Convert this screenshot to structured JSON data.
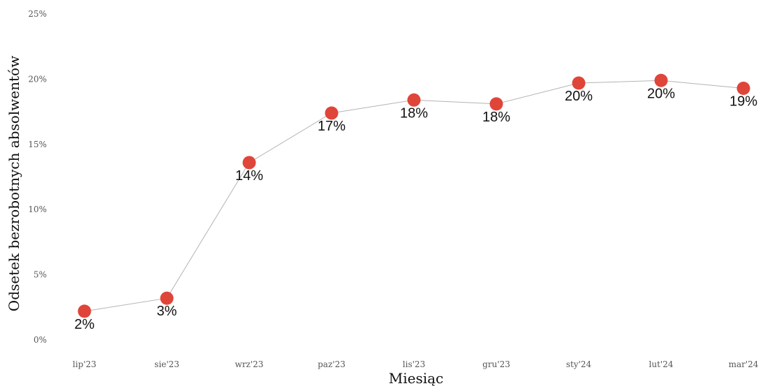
{
  "chart_data": {
    "type": "line",
    "xlabel": "Miesiąc",
    "ylabel": "Odsetek bezrobotnych absolwentów",
    "categories": [
      "lip'23",
      "sie'23",
      "wrz'23",
      "paz'23",
      "lis'23",
      "gru'23",
      "sty'24",
      "lut'24",
      "mar'24"
    ],
    "values": [
      2.2,
      3.2,
      13.6,
      17.4,
      18.4,
      18.1,
      19.7,
      19.9,
      19.3
    ],
    "data_labels": [
      "2%",
      "3%",
      "14%",
      "17%",
      "18%",
      "18%",
      "20%",
      "20%",
      "19%"
    ],
    "ylim": [
      0,
      25
    ],
    "yticks": [
      0,
      5,
      10,
      15,
      20,
      25
    ],
    "ytick_labels": [
      "0%",
      "5%",
      "10%",
      "15%",
      "20%",
      "25%"
    ],
    "grid": false,
    "legend": "none",
    "colors": {
      "marker": "#e0453a",
      "line": "#b3b3b3"
    }
  }
}
